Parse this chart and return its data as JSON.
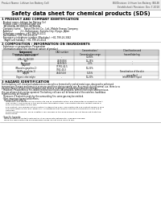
{
  "title": "Safety data sheet for chemical products (SDS)",
  "header_left": "Product Name: Lithium Ion Battery Cell",
  "header_right_line1": "BU/Division: Lithium Ion Battery (BU-B)",
  "header_right_line2": "Established / Revision: Dec.7.2010",
  "section1_title": "1 PRODUCT AND COMPANY IDENTIFICATION",
  "section1_lines": [
    "· Product name: Lithium Ion Battery Cell",
    "· Product code: Cylindrical-type cell",
    "   BR18650A, BR18650U, BR-B650A",
    "· Company name:    Sanyo Electric Co., Ltd., Mobile Energy Company",
    "· Address:           2-1, Kaminasase, Sumoto-City, Hyogo, Japan",
    "· Telephone number:  +81-799-26-4111",
    "· Fax number: +81-799-26-4123",
    "· Emergency telephone number (Weekday): +81-799-26-3042",
    "   (Night and holiday): +81-799-26-4124"
  ],
  "section2_title": "2 COMPOSITION / INFORMATION ON INGREDIENTS",
  "section2_intro": "· Substance or preparation: Preparation",
  "section2_subhead": "· Information about the chemical nature of product",
  "table_header_col1a": "Component",
  "table_header_col1b": "(Common chemical name)",
  "table_header_col2": "CAS number",
  "table_header_col3": "Concentration /\nConcentration range",
  "table_header_col4": "Classification and\nhazard labeling",
  "table_rows": [
    [
      "Lithium cobalt oxide\n(LiMn-Co-Ni(O4))",
      "-",
      "30-60%",
      ""
    ],
    [
      "Iron",
      "7439-89-6",
      "15-25%",
      "-"
    ],
    [
      "Aluminum",
      "7429-90-5",
      "2-5%",
      "-"
    ],
    [
      "Graphite\n(Mixed in graphite-1)\n(A/Mix graphite-1)",
      "77782-42-5\n7782-40-3",
      "10-25%",
      ""
    ],
    [
      "Copper",
      "7440-50-8",
      "5-15%",
      "Sensitization of the skin\ngroup No.2"
    ],
    [
      "Organic electrolyte",
      "-",
      "10-20%",
      "Inflammable liquid"
    ]
  ],
  "section3_title": "3 HAZARD IDENTIFICATION",
  "section3_body": [
    "For the battery cell, chemical substances are stored in a hermetically sealed metal case, designed to withstand",
    "temperature changes and pressure-pressure conditions during normal use. As a result, during normal use, there is no",
    "physical danger of ignition or explosion and there is no danger of hazardous materials leakage.",
    "   However, if exposed to a fire, added mechanical shocks, decomposed, written electrolyte-strong misuse,",
    "the gas release vent can be operated. The battery cell case will be breached of the extreme, hazardous",
    "materials may be released.",
    "   Moreover, if heated strongly by the surrounding fire, some gas may be emitted."
  ],
  "section3_bullet1": "· Most important hazard and effects:",
  "section3_human_header": "Human health effects:",
  "section3_human_items": [
    "Inhalation: The release of the electrolyte has an anesthetic action and stimulates in respiratory tract.",
    "Skin contact: The release of the electrolyte stimulates a skin. The electrolyte skin contact causes a",
    "sore and stimulation on the skin.",
    "Eye contact: The release of the electrolyte stimulates eyes. The electrolyte eye contact causes a sore",
    "and stimulation on the eye. Especially, a substance that causes a strong inflammation of the eye is",
    "contained.",
    "Environmental effects: Since a battery cell remains in the environment, do not throw out it into the",
    "environment."
  ],
  "section3_bullet2": "· Specific hazards:",
  "section3_specific_items": [
    "If the electrolyte contacts with water, it will generate detrimental hydrogen fluoride.",
    "Since the said electrolyte is inflammable liquid, do not bring close to fire."
  ],
  "bg_color": "#ffffff",
  "text_color": "#000000",
  "header_bg": "#eeeeee",
  "table_header_bg": "#cccccc",
  "table_row_bg1": "#f0f0f0",
  "table_row_bg2": "#ffffff",
  "line_color": "#aaaaaa",
  "border_color": "#888888"
}
